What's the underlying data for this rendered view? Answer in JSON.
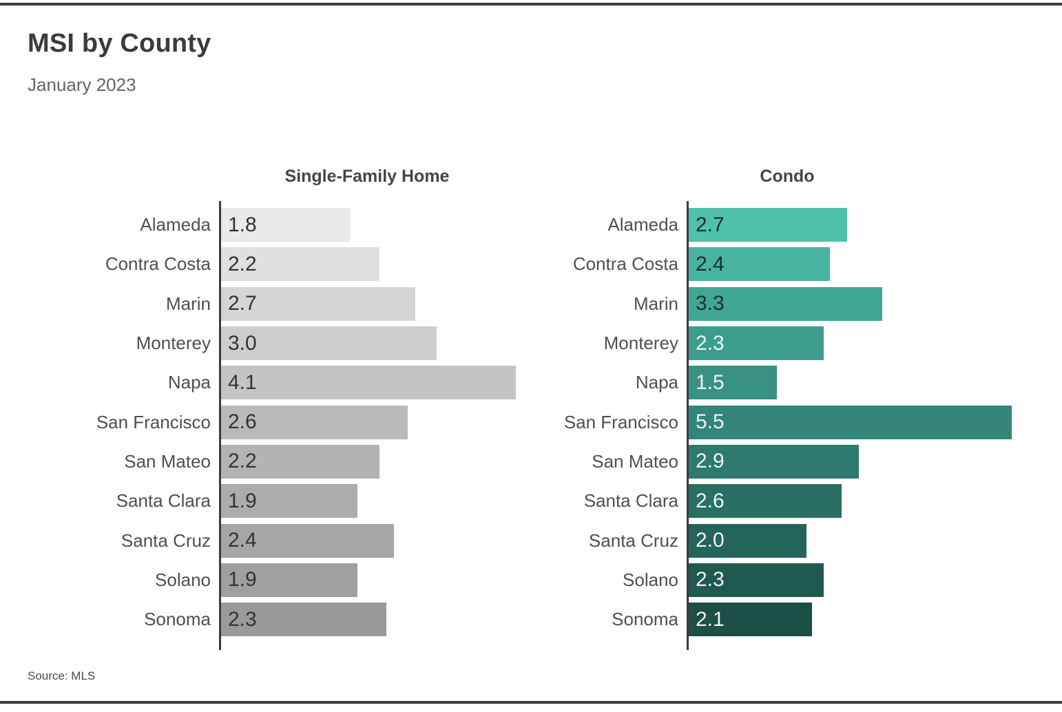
{
  "chart_data": {
    "type": "bar",
    "orientation": "horizontal",
    "title": "MSI by County",
    "subtitle": "January 2023",
    "source": "Source: MLS",
    "categories": [
      "Alameda",
      "Contra Costa",
      "Marin",
      "Monterey",
      "Napa",
      "San Francisco",
      "San Mateo",
      "Santa Clara",
      "Santa Cruz",
      "Solano",
      "Sonoma"
    ],
    "series": [
      {
        "name": "Single-Family Home",
        "values": [
          1.8,
          2.2,
          2.7,
          3.0,
          4.1,
          2.6,
          2.2,
          1.9,
          2.4,
          1.9,
          2.3
        ],
        "value_labels": [
          "1.8",
          "2.2",
          "2.7",
          "3.0",
          "4.1",
          "2.6",
          "2.2",
          "1.9",
          "2.4",
          "1.9",
          "2.3"
        ],
        "colors": [
          "#e9ebea",
          "#dfe0df",
          "#d4d5d4",
          "#cccdcc",
          "#c3c4c3",
          "#b9bab9",
          "#b2b3b2",
          "#abacab",
          "#a5a6a5",
          "#9fa09f",
          "#999a99"
        ],
        "value_label_colors": [
          "#333333",
          "#333333",
          "#333333",
          "#333333",
          "#333333",
          "#333333",
          "#333333",
          "#333333",
          "#333333",
          "#333333",
          "#333333"
        ]
      },
      {
        "name": "Condo",
        "values": [
          2.7,
          2.4,
          3.3,
          2.3,
          1.5,
          5.5,
          2.9,
          2.6,
          2.0,
          2.3,
          2.1
        ],
        "value_labels": [
          "2.7",
          "2.4",
          "3.3",
          "2.3",
          "1.5",
          "5.5",
          "2.9",
          "2.6",
          "2.0",
          "2.3",
          "2.1"
        ],
        "colors": [
          "#4fc0ac",
          "#47b3a0",
          "#41a795",
          "#3c9d8d",
          "#389183",
          "#33857a",
          "#2e7a6e",
          "#2a6f64",
          "#25645a",
          "#205950",
          "#1c4f46"
        ],
        "value_label_colors": [
          "#1b2f2b",
          "#1b2f2b",
          "#1b2f2b",
          "#f0f5f3",
          "#f0f5f3",
          "#f0f5f3",
          "#f0f5f3",
          "#f0f5f3",
          "#f0f5f3",
          "#f0f5f3",
          "#f0f5f3"
        ]
      }
    ],
    "layout": {
      "value_labels_inside": true,
      "gridlines": false,
      "axis_line_color": "#3a3a3a",
      "xlim_single_family": [
        0,
        4.1
      ],
      "xlim_condo": [
        0,
        5.5
      ]
    }
  }
}
